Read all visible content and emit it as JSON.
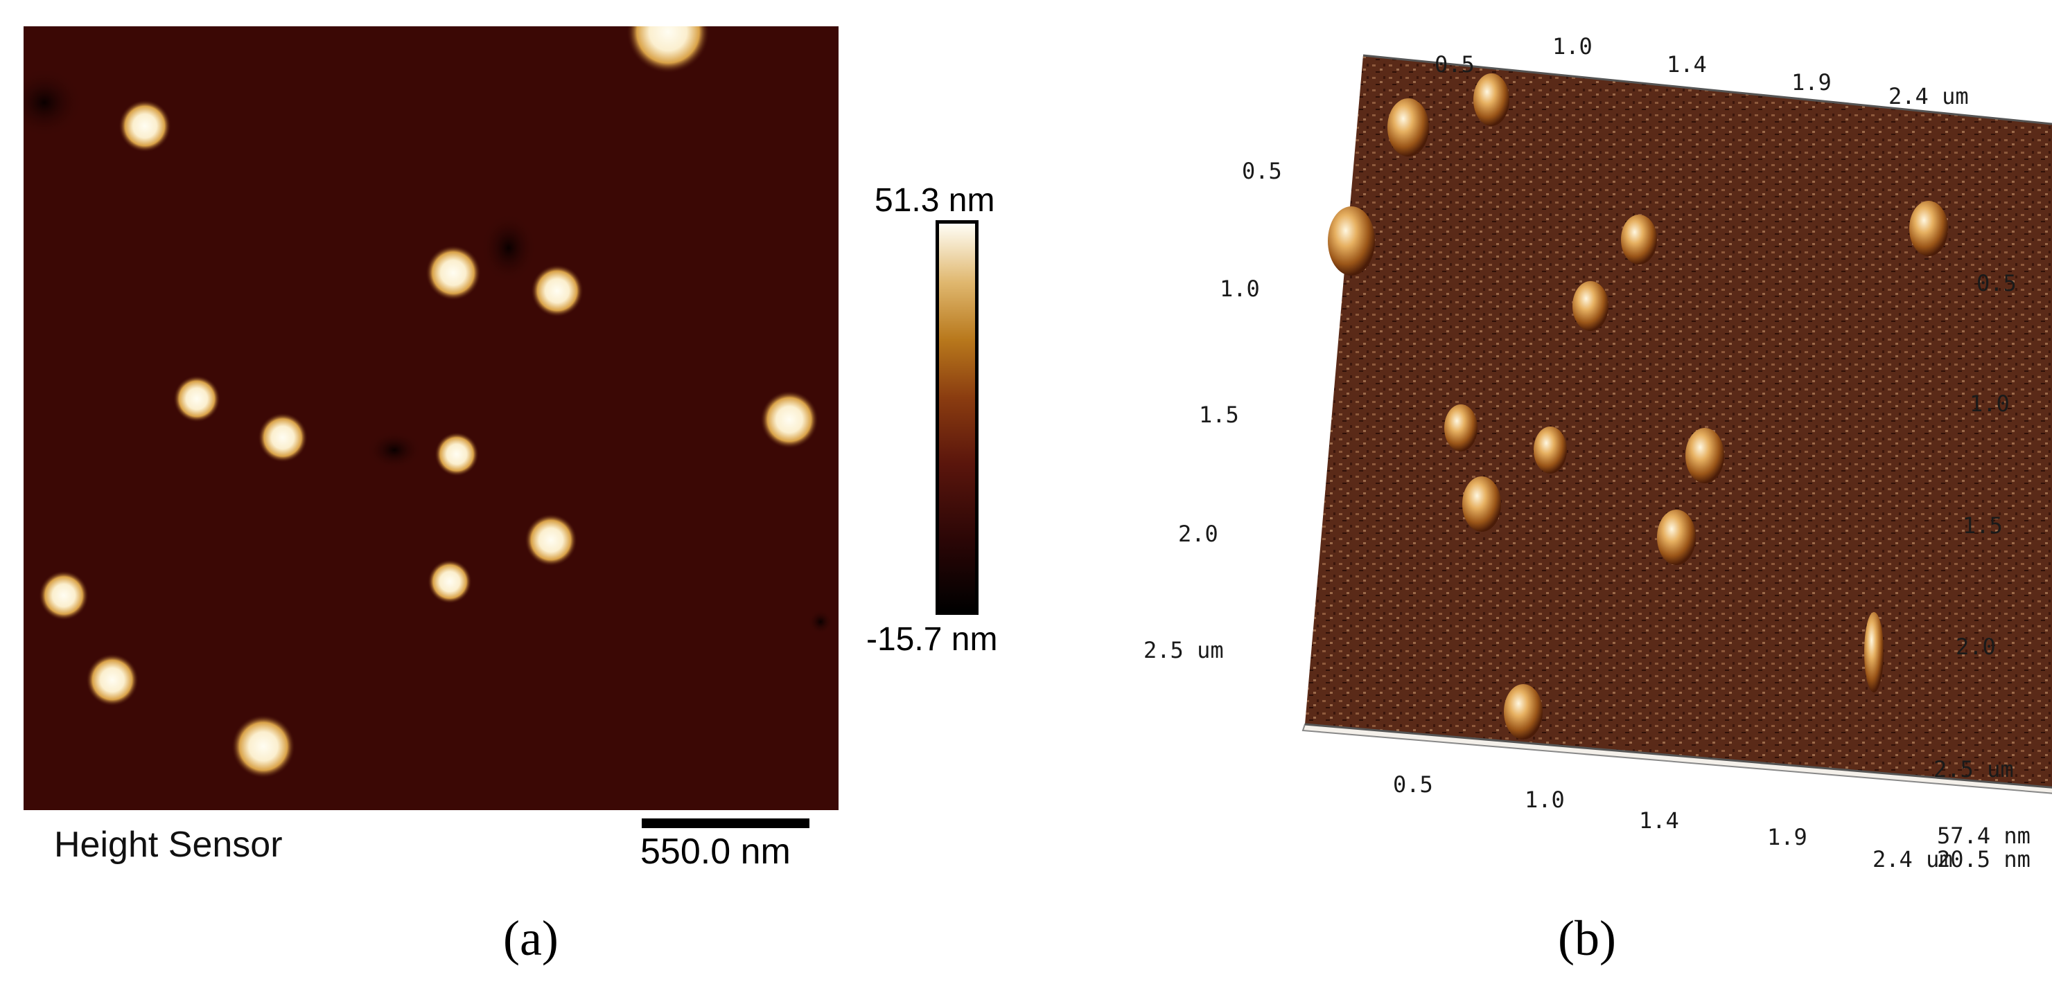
{
  "panel_a": {
    "label": "Height Sensor",
    "scale_bar_label": "550.0 nm",
    "colorbar_max": "51.3 nm",
    "colorbar_min": "-15.7 nm",
    "letter": "(a)"
  },
  "panel_b": {
    "letter": "(b)",
    "top_ticks": [
      "0.5",
      "1.0",
      "1.4",
      "1.9",
      "2.4 um"
    ],
    "left_ticks": [
      "0.5",
      "1.0",
      "1.5",
      "2.0",
      "2.5 um"
    ],
    "right_ticks": [
      "0.5",
      "1.0",
      "1.5",
      "2.0",
      "2.5 um"
    ],
    "bottom_ticks": [
      "0.5",
      "1.0",
      "1.4",
      "1.9",
      "2.4 um"
    ],
    "z_max": "57.4 nm",
    "z_min": "20.5 nm"
  },
  "colors": {
    "background_dark": "#3b0805",
    "particle_core": "#fffbe8",
    "particle_edge": "#c88a2a"
  }
}
